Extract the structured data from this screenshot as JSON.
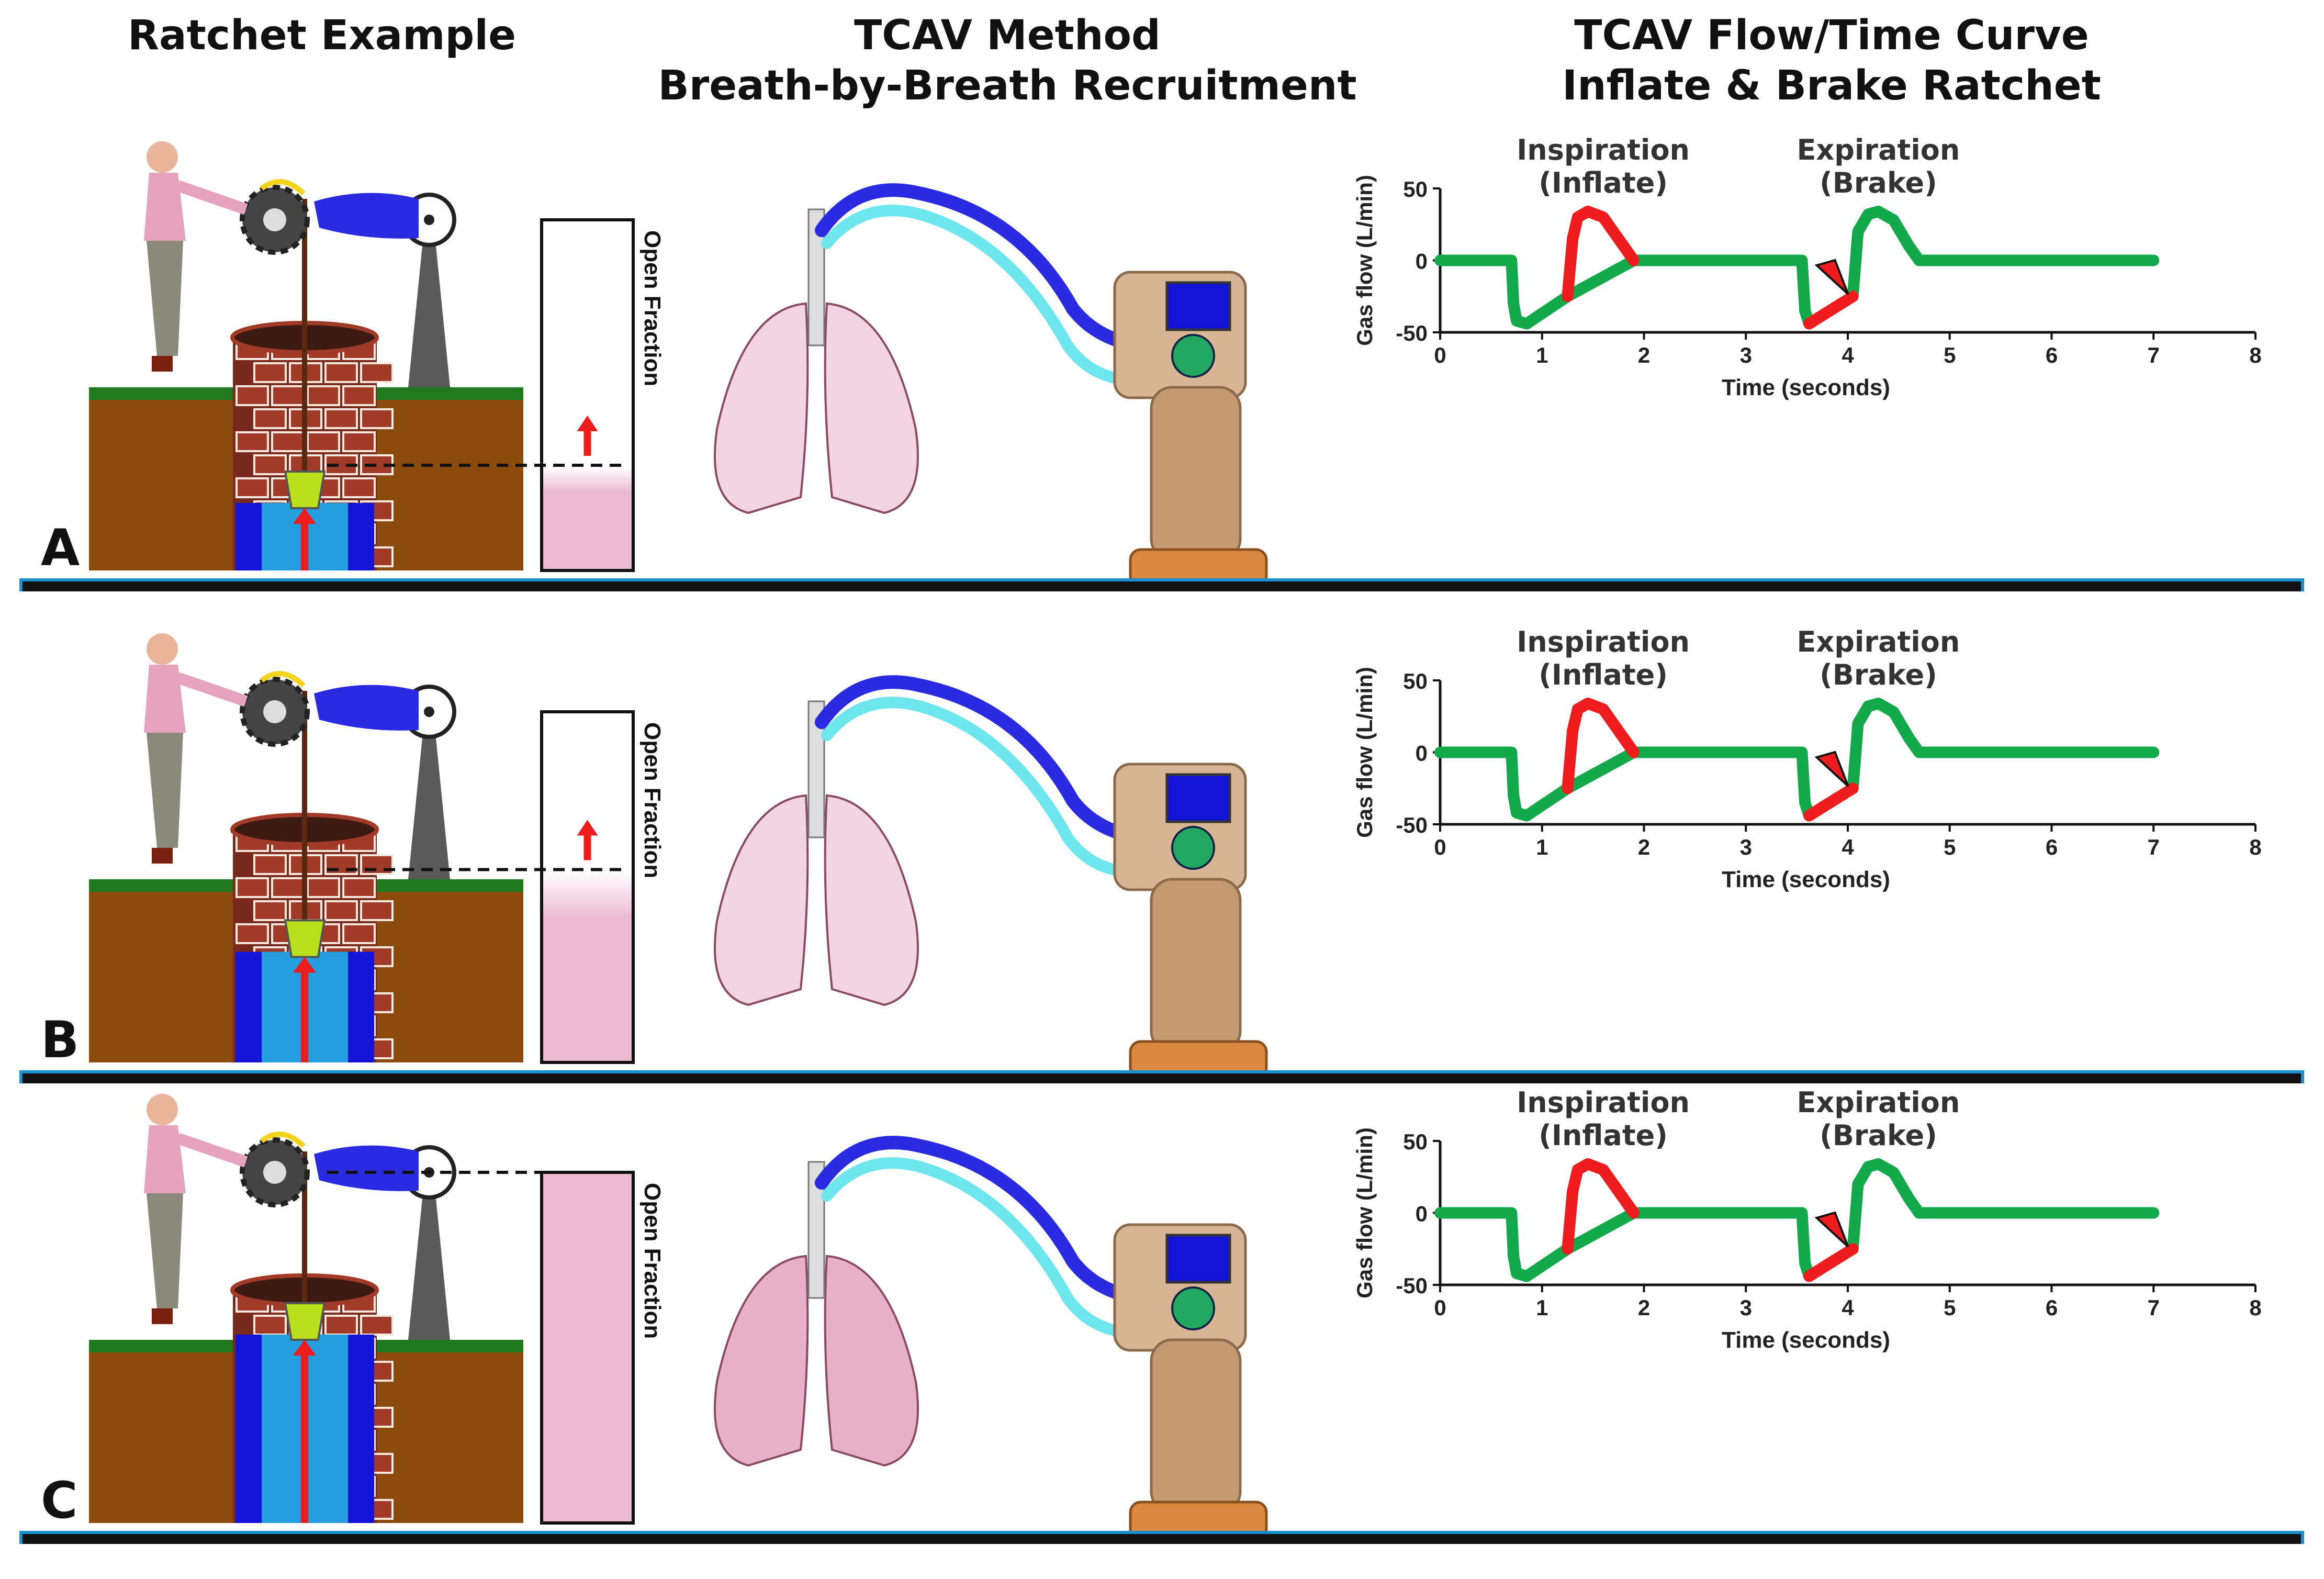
{
  "titles": {
    "ratchet": "Ratchet Example",
    "tcav_line1": "TCAV Method",
    "tcav_line2": "Breath-by-Breath Recruitment",
    "curve_line1": "TCAV Flow/Time Curve",
    "curve_line2": "Inflate & Brake Ratchet"
  },
  "open_fraction_label": "Open Fraction",
  "panels": [
    {
      "letter": "A",
      "open_fraction": 0.3,
      "show_up_arrow": true
    },
    {
      "letter": "B",
      "open_fraction": 0.55,
      "show_up_arrow": true
    },
    {
      "letter": "C",
      "open_fraction": 1.0,
      "show_up_arrow": false
    }
  ],
  "annotations": {
    "inspiration": "Inspiration",
    "inflate": "(Inflate)",
    "expiration": "Expiration",
    "brake": "(Brake)"
  },
  "colors": {
    "inflate_brake": "#ee1c1c",
    "flow_curve": "#12a94a",
    "separator": "#1a8fd0",
    "earth": "#8a4b0c",
    "grass": "#1f7a1f",
    "water": "#1414d8",
    "bucket": "#b9e01a",
    "open_fraction_fill": "#ebb9d0",
    "tube_blue": "#2a2ae0",
    "tube_cyan": "#6ee6ee"
  },
  "chart_data": {
    "type": "line",
    "xlabel": "Time (seconds)",
    "ylabel": "Gas flow (L/min)",
    "xlim": [
      0,
      8
    ],
    "ylim": [
      -50,
      50
    ],
    "xticks": [
      0,
      1,
      2,
      3,
      4,
      5,
      6,
      7,
      8
    ],
    "yticks": [
      50,
      0,
      -50
    ],
    "grid": false,
    "series": [
      {
        "color": "green",
        "x": [
          0,
          0.7,
          0.72,
          0.75,
          0.85,
          1.25,
          1.25,
          1.9,
          1.95,
          3.5,
          3.55,
          3.58,
          3.62,
          3.62,
          4.05,
          4.05,
          4.1,
          4.2,
          4.3,
          4.45,
          4.6,
          4.7,
          7.0
        ],
        "y": [
          0,
          0,
          -30,
          -42,
          -44,
          -25,
          -25,
          0,
          0,
          0,
          0,
          -35,
          -44,
          -44,
          -25,
          -25,
          20,
          32,
          34,
          28,
          10,
          0,
          0
        ]
      },
      {
        "color": "red",
        "segments": [
          {
            "label": "inspiration",
            "x": [
              1.25,
              1.3,
              1.35,
              1.45,
              1.6,
              1.75,
              1.9
            ],
            "y": [
              -25,
              15,
              30,
              34,
              30,
              15,
              0
            ]
          },
          {
            "label": "expiration",
            "x": [
              3.62,
              3.8,
              4.05
            ],
            "y": [
              -44,
              -36,
              -25
            ]
          }
        ]
      }
    ]
  }
}
